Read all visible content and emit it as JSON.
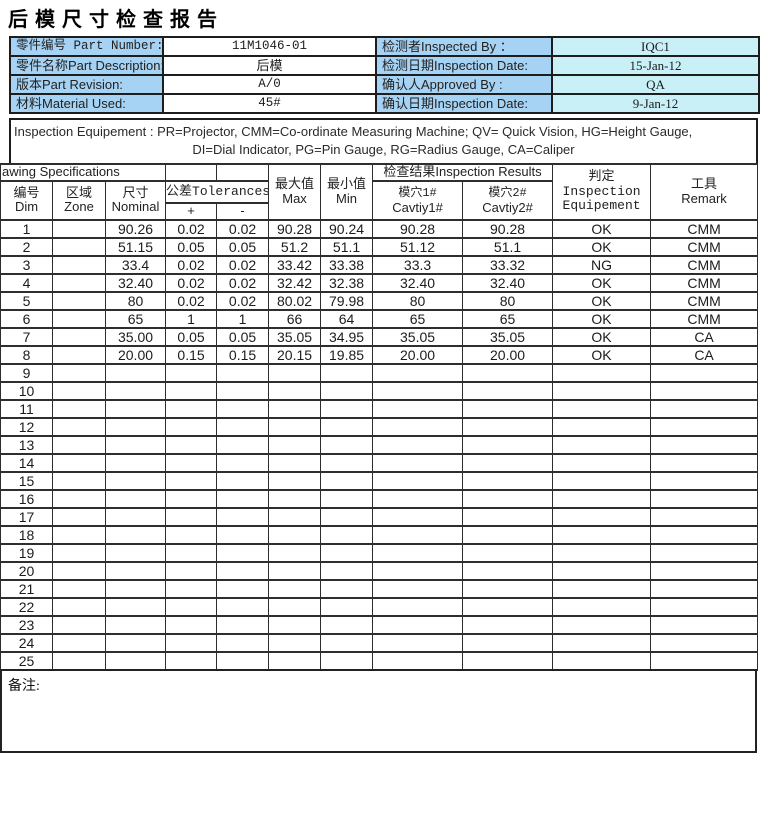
{
  "title": "后模尺寸检查报告",
  "colors": {
    "label_bg": "#a6d2f3",
    "value_bg_cyan": "#c9f0f7",
    "value_bg_white": "#ffffff",
    "border": "#1d1d1d"
  },
  "info_table": {
    "rows": [
      {
        "label": "零件编号 Part Number:",
        "value": "11M1046-01",
        "label2": "检测者Inspected By ：",
        "value2": "IQC1"
      },
      {
        "label": "零件名称Part Description:",
        "value": "后模",
        "label2": "检测日期Inspection Date:",
        "value2": "15-Jan-12"
      },
      {
        "label": "版本Part Revision:",
        "value": "A/0",
        "label2": "确认人Approved By :",
        "value2": "QA"
      },
      {
        "label": "材料Material Used:",
        "value": "45#",
        "label2": "确认日期Inspection Date:",
        "value2": "9-Jan-12"
      }
    ]
  },
  "equipment_note": {
    "line1": "Inspection Equipement : PR=Projector,   CMM=Co-ordinate Measuring Machine;  QV= Quick Vision, HG=Height Gauge,",
    "line2": "DI=Dial Indicator,  PG=Pin Gauge, RG=Radius Gauge, CA=Caliper"
  },
  "spec_table": {
    "header": {
      "drawing_specs": "awing Specifications",
      "results_group": "检查结果Inspection Results",
      "col_dim": {
        "zh": "编号",
        "en": "Dim"
      },
      "col_zone": {
        "zh": "区域",
        "en": "Zone"
      },
      "col_nominal": {
        "zh": "尺寸",
        "en": "Nominal"
      },
      "col_tolerances": "公差Tolerances",
      "tol_plus": "+",
      "tol_minus": "-",
      "col_max": {
        "zh": "最大值",
        "en": "Max"
      },
      "col_min": {
        "zh": "最小值",
        "en": "Min"
      },
      "col_cavity1": {
        "zh": "模穴1#",
        "en": "Cavtiy1#"
      },
      "col_cavity2": {
        "zh": "模穴2#",
        "en": "Cavtiy2#"
      },
      "col_judge": {
        "zh": "判定",
        "en1": "Inspection",
        "en2": "Equipement"
      },
      "col_tool": {
        "zh": "工具",
        "en": "Remark"
      }
    },
    "rows": [
      {
        "dim": "1",
        "zone": "",
        "nominal": "90.26",
        "tol_plus": "0.02",
        "tol_minus": "0.02",
        "max": "90.28",
        "min": "90.24",
        "cav1": "90.28",
        "cav2": "90.28",
        "judge": "OK",
        "tool": "CMM"
      },
      {
        "dim": "2",
        "zone": "",
        "nominal": "51.15",
        "tol_plus": "0.05",
        "tol_minus": "0.05",
        "max": "51.2",
        "min": "51.1",
        "cav1": "51.12",
        "cav2": "51.1",
        "judge": "OK",
        "tool": "CMM"
      },
      {
        "dim": "3",
        "zone": "",
        "nominal": "33.4",
        "tol_plus": "0.02",
        "tol_minus": "0.02",
        "max": "33.42",
        "min": "33.38",
        "cav1": "33.3",
        "cav2": "33.32",
        "judge": "NG",
        "tool": "CMM"
      },
      {
        "dim": "4",
        "zone": "",
        "nominal": "32.40",
        "tol_plus": "0.02",
        "tol_minus": "0.02",
        "max": "32.42",
        "min": "32.38",
        "cav1": "32.40",
        "cav2": "32.40",
        "judge": "OK",
        "tool": "CMM"
      },
      {
        "dim": "5",
        "zone": "",
        "nominal": "80",
        "tol_plus": "0.02",
        "tol_minus": "0.02",
        "max": "80.02",
        "min": "79.98",
        "cav1": "80",
        "cav2": "80",
        "judge": "OK",
        "tool": "CMM"
      },
      {
        "dim": "6",
        "zone": "",
        "nominal": "65",
        "tol_plus": "1",
        "tol_minus": "1",
        "max": "66",
        "min": "64",
        "cav1": "65",
        "cav2": "65",
        "judge": "OK",
        "tool": "CMM"
      },
      {
        "dim": "7",
        "zone": "",
        "nominal": "35.00",
        "tol_plus": "0.05",
        "tol_minus": "0.05",
        "max": "35.05",
        "min": "34.95",
        "cav1": "35.05",
        "cav2": "35.05",
        "judge": "OK",
        "tool": "CA"
      },
      {
        "dim": "8",
        "zone": "",
        "nominal": "20.00",
        "tol_plus": "0.15",
        "tol_minus": "0.15",
        "max": "20.15",
        "min": "19.85",
        "cav1": "20.00",
        "cav2": "20.00",
        "judge": "OK",
        "tool": "CA"
      },
      {
        "dim": "9",
        "zone": "",
        "nominal": "",
        "tol_plus": "",
        "tol_minus": "",
        "max": "",
        "min": "",
        "cav1": "",
        "cav2": "",
        "judge": "",
        "tool": ""
      },
      {
        "dim": "10",
        "zone": "",
        "nominal": "",
        "tol_plus": "",
        "tol_minus": "",
        "max": "",
        "min": "",
        "cav1": "",
        "cav2": "",
        "judge": "",
        "tool": ""
      },
      {
        "dim": "11",
        "zone": "",
        "nominal": "",
        "tol_plus": "",
        "tol_minus": "",
        "max": "",
        "min": "",
        "cav1": "",
        "cav2": "",
        "judge": "",
        "tool": ""
      },
      {
        "dim": "12",
        "zone": "",
        "nominal": "",
        "tol_plus": "",
        "tol_minus": "",
        "max": "",
        "min": "",
        "cav1": "",
        "cav2": "",
        "judge": "",
        "tool": ""
      },
      {
        "dim": "13",
        "zone": "",
        "nominal": "",
        "tol_plus": "",
        "tol_minus": "",
        "max": "",
        "min": "",
        "cav1": "",
        "cav2": "",
        "judge": "",
        "tool": ""
      },
      {
        "dim": "14",
        "zone": "",
        "nominal": "",
        "tol_plus": "",
        "tol_minus": "",
        "max": "",
        "min": "",
        "cav1": "",
        "cav2": "",
        "judge": "",
        "tool": ""
      },
      {
        "dim": "15",
        "zone": "",
        "nominal": "",
        "tol_plus": "",
        "tol_minus": "",
        "max": "",
        "min": "",
        "cav1": "",
        "cav2": "",
        "judge": "",
        "tool": ""
      },
      {
        "dim": "16",
        "zone": "",
        "nominal": "",
        "tol_plus": "",
        "tol_minus": "",
        "max": "",
        "min": "",
        "cav1": "",
        "cav2": "",
        "judge": "",
        "tool": ""
      },
      {
        "dim": "17",
        "zone": "",
        "nominal": "",
        "tol_plus": "",
        "tol_minus": "",
        "max": "",
        "min": "",
        "cav1": "",
        "cav2": "",
        "judge": "",
        "tool": ""
      },
      {
        "dim": "18",
        "zone": "",
        "nominal": "",
        "tol_plus": "",
        "tol_minus": "",
        "max": "",
        "min": "",
        "cav1": "",
        "cav2": "",
        "judge": "",
        "tool": ""
      },
      {
        "dim": "19",
        "zone": "",
        "nominal": "",
        "tol_plus": "",
        "tol_minus": "",
        "max": "",
        "min": "",
        "cav1": "",
        "cav2": "",
        "judge": "",
        "tool": ""
      },
      {
        "dim": "20",
        "zone": "",
        "nominal": "",
        "tol_plus": "",
        "tol_minus": "",
        "max": "",
        "min": "",
        "cav1": "",
        "cav2": "",
        "judge": "",
        "tool": ""
      },
      {
        "dim": "21",
        "zone": "",
        "nominal": "",
        "tol_plus": "",
        "tol_minus": "",
        "max": "",
        "min": "",
        "cav1": "",
        "cav2": "",
        "judge": "",
        "tool": ""
      },
      {
        "dim": "22",
        "zone": "",
        "nominal": "",
        "tol_plus": "",
        "tol_minus": "",
        "max": "",
        "min": "",
        "cav1": "",
        "cav2": "",
        "judge": "",
        "tool": ""
      },
      {
        "dim": "23",
        "zone": "",
        "nominal": "",
        "tol_plus": "",
        "tol_minus": "",
        "max": "",
        "min": "",
        "cav1": "",
        "cav2": "",
        "judge": "",
        "tool": ""
      },
      {
        "dim": "24",
        "zone": "",
        "nominal": "",
        "tol_plus": "",
        "tol_minus": "",
        "max": "",
        "min": "",
        "cav1": "",
        "cav2": "",
        "judge": "",
        "tool": ""
      },
      {
        "dim": "25",
        "zone": "",
        "nominal": "",
        "tol_plus": "",
        "tol_minus": "",
        "max": "",
        "min": "",
        "cav1": "",
        "cav2": "",
        "judge": "",
        "tool": ""
      }
    ]
  },
  "remarks": {
    "label": "备注:",
    "content": ""
  }
}
